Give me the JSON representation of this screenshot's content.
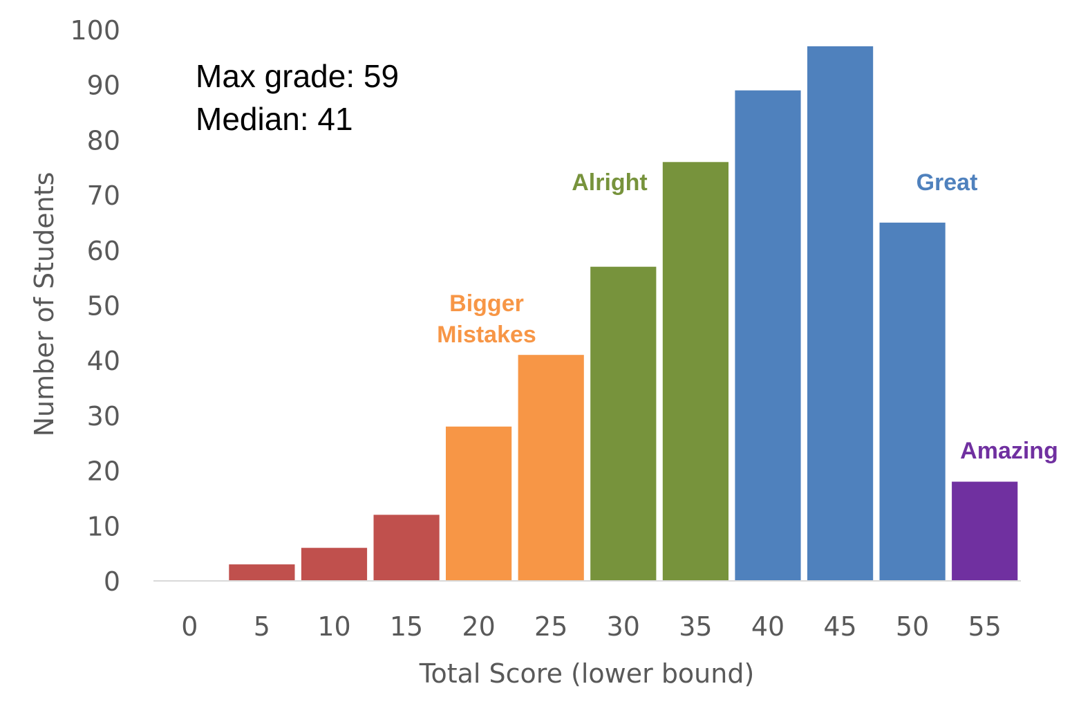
{
  "chart_data": {
    "type": "bar",
    "title": "",
    "xlabel": "Total Score (lower bound)",
    "ylabel": "Number of Students",
    "ylim": [
      0,
      100
    ],
    "yticks": [
      "0",
      "10",
      "20",
      "30",
      "40",
      "50",
      "60",
      "70",
      "80",
      "90",
      "100"
    ],
    "categories": [
      "0",
      "5",
      "10",
      "15",
      "20",
      "25",
      "30",
      "35",
      "40",
      "45",
      "50",
      "55"
    ],
    "values": [
      0,
      3,
      6,
      12,
      28,
      41,
      57,
      76,
      89,
      97,
      65,
      18
    ],
    "bar_colors": [
      "#c0504d",
      "#c0504d",
      "#c0504d",
      "#c0504d",
      "#f79646",
      "#f79646",
      "#77933c",
      "#77933c",
      "#4f81bd",
      "#4f81bd",
      "#4f81bd",
      "#7030a0"
    ],
    "grid": false,
    "annotations": {
      "stats": [
        "Max grade: 59",
        "Median: 41"
      ],
      "groups": [
        {
          "lines": [
            "Bigger",
            "Mistakes"
          ],
          "color": "#f79646",
          "anchor_category": "20"
        },
        {
          "lines": [
            "Alright"
          ],
          "color": "#77933c",
          "anchor_category": "30"
        },
        {
          "lines": [
            "Great"
          ],
          "color": "#4f81bd",
          "anchor_category": "50"
        },
        {
          "lines": [
            "Amazing"
          ],
          "color": "#7030a0",
          "anchor_category": "55"
        }
      ]
    }
  }
}
